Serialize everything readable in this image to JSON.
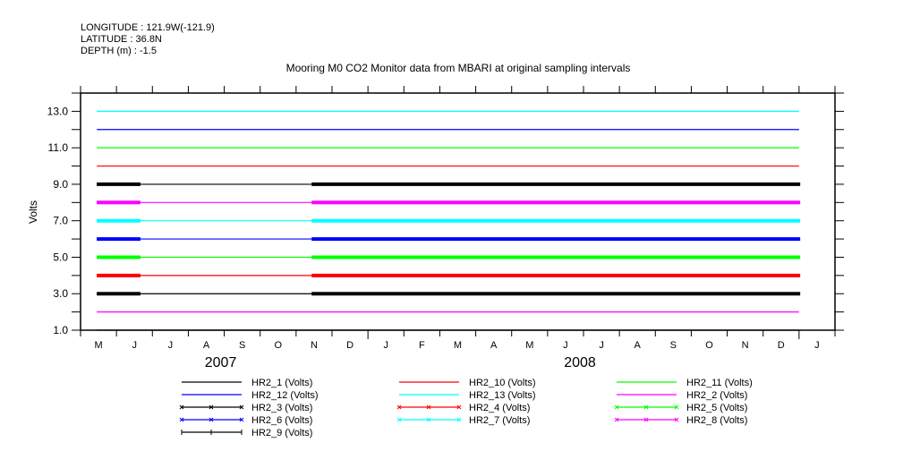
{
  "header": {
    "longitude": "LONGITUDE : 121.9W(-121.9)",
    "latitude": "LATITUDE : 36.8N",
    "depth": "DEPTH (m) : -1.5"
  },
  "chart_data": {
    "type": "line",
    "title": "Mooring M0 CO2 Monitor data from MBARI at original sampling intervals",
    "ylabel": "Volts",
    "xlabel": "",
    "ylim": [
      1,
      14
    ],
    "yticks": [
      1,
      3,
      5,
      7,
      9,
      11,
      13
    ],
    "ytick_labels": [
      "1.0",
      "3.0",
      "5.0",
      "7.0",
      "9.0",
      "11.0",
      "13.0"
    ],
    "xlim": [
      "2007-05-01",
      "2009-02-01"
    ],
    "month_labels": [
      "M",
      "J",
      "J",
      "A",
      "S",
      "O",
      "N",
      "D",
      "J",
      "F",
      "M",
      "A",
      "M",
      "J",
      "J",
      "A",
      "S",
      "O",
      "N",
      "D",
      "J"
    ],
    "year_labels": [
      {
        "label": "2007",
        "month_center": 3.9
      },
      {
        "label": "2008",
        "month_center": 13.9
      }
    ],
    "grid": false,
    "legend_position": "bottom",
    "data_range": [
      "2007-05-15",
      "2009-01-01"
    ],
    "dense_segments": [
      [
        "2007-05-15",
        "2007-06-21"
      ],
      [
        "2007-11-14",
        "2009-01-02"
      ]
    ],
    "series": [
      {
        "name": "HR2_1 (Volts)",
        "value": 1,
        "color": "#000000",
        "marker": "none"
      },
      {
        "name": "HR2_10 (Volts)",
        "value": 10,
        "color": "#ff0000",
        "marker": "none"
      },
      {
        "name": "HR2_11 (Volts)",
        "value": 11,
        "color": "#00ff00",
        "marker": "none"
      },
      {
        "name": "HR2_12 (Volts)",
        "value": 12,
        "color": "#0000ff",
        "marker": "none"
      },
      {
        "name": "HR2_13 (Volts)",
        "value": 13,
        "color": "#00ffff",
        "marker": "none"
      },
      {
        "name": "HR2_2 (Volts)",
        "value": 2,
        "color": "#ff00ff",
        "marker": "none"
      },
      {
        "name": "HR2_3 (Volts)",
        "value": 3,
        "color": "#000000",
        "marker": "x"
      },
      {
        "name": "HR2_4 (Volts)",
        "value": 4,
        "color": "#ff0000",
        "marker": "x"
      },
      {
        "name": "HR2_5 (Volts)",
        "value": 5,
        "color": "#00ff00",
        "marker": "x"
      },
      {
        "name": "HR2_6 (Volts)",
        "value": 6,
        "color": "#0000ff",
        "marker": "x"
      },
      {
        "name": "HR2_7 (Volts)",
        "value": 7,
        "color": "#00ffff",
        "marker": "x"
      },
      {
        "name": "HR2_8 (Volts)",
        "value": 8,
        "color": "#ff00ff",
        "marker": "x"
      },
      {
        "name": "HR2_9 (Volts)",
        "value": 9,
        "color": "#000000",
        "marker": "plus"
      }
    ]
  }
}
